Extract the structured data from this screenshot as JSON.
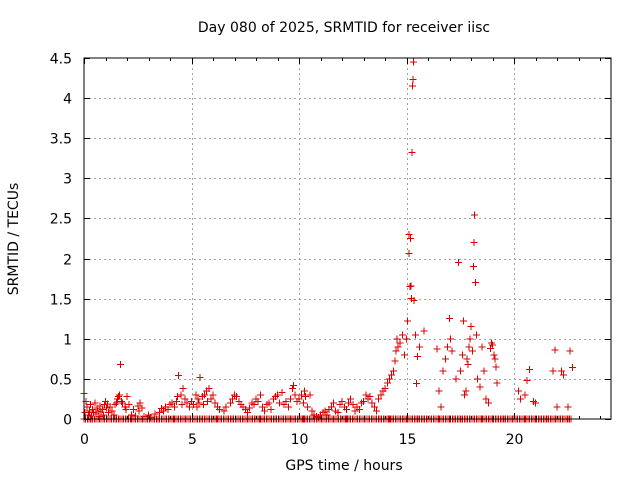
{
  "chart_data": {
    "type": "scatter",
    "title": "Day 080 of 2025, SRMTID for receiver iisc",
    "xlabel": "GPS time / hours",
    "ylabel": "SRMTID / TECUs",
    "xlim": [
      0,
      24.5
    ],
    "ylim": [
      0,
      4.5
    ],
    "xticks": [
      0,
      5,
      10,
      15,
      20
    ],
    "xtick_labels": [
      "0",
      "5",
      "10",
      "15",
      "20"
    ],
    "yticks": [
      0,
      0.5,
      1,
      1.5,
      2,
      2.5,
      3,
      3.5,
      4,
      4.5
    ],
    "ytick_labels": [
      "0",
      "0.5",
      "1",
      "1.5",
      "2",
      "2.5",
      "3",
      "3.5",
      "4",
      "4.5"
    ],
    "grid": true,
    "marker": "+",
    "marker_color": "#dd0000",
    "series": [
      {
        "name": "SRMTID",
        "points": [
          [
            0.0,
            0.32
          ],
          [
            0.05,
            0.08
          ],
          [
            0.1,
            0.22
          ],
          [
            0.15,
            0.15
          ],
          [
            0.2,
            0.05
          ],
          [
            0.25,
            0.1
          ],
          [
            0.3,
            0.18
          ],
          [
            0.35,
            0.04
          ],
          [
            0.4,
            0.12
          ],
          [
            0.45,
            0.08
          ],
          [
            0.5,
            0.2
          ],
          [
            0.55,
            0.06
          ],
          [
            0.6,
            0.14
          ],
          [
            0.65,
            0.1
          ],
          [
            0.7,
            0.03
          ],
          [
            0.75,
            0.16
          ],
          [
            0.8,
            0.09
          ],
          [
            0.85,
            0.12
          ],
          [
            0.9,
            0.05
          ],
          [
            0.95,
            0.18
          ],
          [
            1.0,
            0.22
          ],
          [
            1.05,
            0.14
          ],
          [
            1.1,
            0.19
          ],
          [
            1.15,
            0.08
          ],
          [
            1.2,
            0.15
          ],
          [
            1.3,
            0.1
          ],
          [
            1.4,
            0.05
          ],
          [
            1.45,
            0.18
          ],
          [
            1.5,
            0.2
          ],
          [
            1.55,
            0.25
          ],
          [
            1.6,
            0.28
          ],
          [
            1.65,
            0.3
          ],
          [
            1.7,
            0.68
          ],
          [
            1.75,
            0.22
          ],
          [
            1.8,
            0.2
          ],
          [
            1.9,
            0.15
          ],
          [
            1.95,
            0.12
          ],
          [
            2.0,
            0.28
          ],
          [
            2.1,
            0.18
          ],
          [
            2.2,
            0.05
          ],
          [
            2.3,
            0.12
          ],
          [
            2.4,
            0.04
          ],
          [
            2.5,
            0.16
          ],
          [
            2.55,
            0.1
          ],
          [
            2.6,
            0.2
          ],
          [
            2.7,
            0.14
          ],
          [
            2.8,
            0.03
          ],
          [
            3.0,
            0.05
          ],
          [
            3.1,
            0.02
          ],
          [
            3.3,
            0.06
          ],
          [
            3.5,
            0.08
          ],
          [
            3.6,
            0.13
          ],
          [
            3.7,
            0.1
          ],
          [
            3.8,
            0.15
          ],
          [
            3.9,
            0.12
          ],
          [
            4.0,
            0.18
          ],
          [
            4.1,
            0.2
          ],
          [
            4.2,
            0.15
          ],
          [
            4.3,
            0.22
          ],
          [
            4.35,
            0.28
          ],
          [
            4.4,
            0.54
          ],
          [
            4.5,
            0.3
          ],
          [
            4.55,
            0.18
          ],
          [
            4.6,
            0.38
          ],
          [
            4.7,
            0.25
          ],
          [
            4.8,
            0.2
          ],
          [
            4.9,
            0.15
          ],
          [
            5.0,
            0.22
          ],
          [
            5.1,
            0.18
          ],
          [
            5.2,
            0.3
          ],
          [
            5.25,
            0.15
          ],
          [
            5.3,
            0.25
          ],
          [
            5.35,
            0.2
          ],
          [
            5.4,
            0.52
          ],
          [
            5.5,
            0.28
          ],
          [
            5.55,
            0.18
          ],
          [
            5.6,
            0.3
          ],
          [
            5.7,
            0.35
          ],
          [
            5.75,
            0.22
          ],
          [
            5.8,
            0.38
          ],
          [
            5.9,
            0.25
          ],
          [
            6.0,
            0.3
          ],
          [
            6.1,
            0.2
          ],
          [
            6.2,
            0.15
          ],
          [
            6.3,
            0.12
          ],
          [
            6.5,
            0.1
          ],
          [
            6.6,
            0.15
          ],
          [
            6.8,
            0.2
          ],
          [
            6.9,
            0.25
          ],
          [
            7.0,
            0.3
          ],
          [
            7.1,
            0.28
          ],
          [
            7.2,
            0.22
          ],
          [
            7.3,
            0.18
          ],
          [
            7.4,
            0.15
          ],
          [
            7.5,
            0.12
          ],
          [
            7.6,
            0.08
          ],
          [
            7.7,
            0.14
          ],
          [
            7.8,
            0.2
          ],
          [
            7.9,
            0.18
          ],
          [
            8.0,
            0.25
          ],
          [
            8.1,
            0.22
          ],
          [
            8.2,
            0.3
          ],
          [
            8.3,
            0.15
          ],
          [
            8.4,
            0.1
          ],
          [
            8.5,
            0.18
          ],
          [
            8.6,
            0.2
          ],
          [
            8.7,
            0.12
          ],
          [
            8.8,
            0.25
          ],
          [
            8.9,
            0.28
          ],
          [
            9.0,
            0.3
          ],
          [
            9.1,
            0.2
          ],
          [
            9.2,
            0.33
          ],
          [
            9.3,
            0.18
          ],
          [
            9.4,
            0.22
          ],
          [
            9.5,
            0.15
          ],
          [
            9.6,
            0.25
          ],
          [
            9.7,
            0.38
          ],
          [
            9.75,
            0.42
          ],
          [
            9.8,
            0.3
          ],
          [
            9.9,
            0.22
          ],
          [
            10.0,
            0.25
          ],
          [
            10.1,
            0.3
          ],
          [
            10.2,
            0.2
          ],
          [
            10.25,
            0.35
          ],
          [
            10.3,
            0.28
          ],
          [
            10.4,
            0.15
          ],
          [
            10.5,
            0.3
          ],
          [
            10.6,
            0.1
          ],
          [
            10.7,
            0.05
          ],
          [
            10.8,
            0.03
          ],
          [
            10.9,
            0.02
          ],
          [
            11.0,
            0.05
          ],
          [
            11.1,
            0.08
          ],
          [
            11.2,
            0.1
          ],
          [
            11.3,
            0.05
          ],
          [
            11.4,
            0.12
          ],
          [
            11.5,
            0.15
          ],
          [
            11.6,
            0.2
          ],
          [
            11.7,
            0.1
          ],
          [
            11.8,
            0.08
          ],
          [
            11.9,
            0.18
          ],
          [
            12.0,
            0.22
          ],
          [
            12.1,
            0.15
          ],
          [
            12.2,
            0.12
          ],
          [
            12.3,
            0.2
          ],
          [
            12.4,
            0.25
          ],
          [
            12.5,
            0.18
          ],
          [
            12.6,
            0.1
          ],
          [
            12.7,
            0.15
          ],
          [
            12.8,
            0.12
          ],
          [
            12.9,
            0.2
          ],
          [
            13.0,
            0.22
          ],
          [
            13.1,
            0.3
          ],
          [
            13.2,
            0.25
          ],
          [
            13.3,
            0.28
          ],
          [
            13.4,
            0.2
          ],
          [
            13.5,
            0.15
          ],
          [
            13.6,
            0.1
          ],
          [
            13.7,
            0.25
          ],
          [
            13.8,
            0.3
          ],
          [
            13.9,
            0.35
          ],
          [
            14.0,
            0.38
          ],
          [
            14.1,
            0.45
          ],
          [
            14.2,
            0.5
          ],
          [
            14.3,
            0.55
          ],
          [
            14.4,
            0.6
          ],
          [
            14.45,
            0.72
          ],
          [
            14.5,
            0.85
          ],
          [
            14.55,
            1.0
          ],
          [
            14.6,
            0.9
          ],
          [
            14.7,
            0.95
          ],
          [
            14.8,
            1.05
          ],
          [
            14.9,
            0.8
          ],
          [
            15.0,
            1.0
          ],
          [
            15.05,
            1.22
          ],
          [
            15.1,
            2.3
          ],
          [
            15.12,
            2.06
          ],
          [
            15.15,
            1.65
          ],
          [
            15.18,
            2.25
          ],
          [
            15.2,
            1.66
          ],
          [
            15.22,
            1.5
          ],
          [
            15.25,
            3.32
          ],
          [
            15.28,
            4.15
          ],
          [
            15.3,
            4.23
          ],
          [
            15.32,
            4.45
          ],
          [
            15.35,
            1.48
          ],
          [
            15.4,
            1.05
          ],
          [
            15.45,
            0.44
          ],
          [
            15.5,
            0.78
          ],
          [
            15.6,
            0.9
          ],
          [
            15.8,
            1.1
          ],
          [
            16.0,
            0.0
          ],
          [
            16.4,
            0.87
          ],
          [
            16.5,
            0.35
          ],
          [
            16.6,
            0.15
          ],
          [
            16.7,
            0.6
          ],
          [
            16.8,
            0.75
          ],
          [
            16.9,
            0.9
          ],
          [
            17.0,
            1.25
          ],
          [
            17.05,
            1.0
          ],
          [
            17.1,
            0.85
          ],
          [
            17.3,
            0.5
          ],
          [
            17.4,
            1.95
          ],
          [
            17.5,
            0.6
          ],
          [
            17.6,
            0.8
          ],
          [
            17.65,
            1.22
          ],
          [
            17.7,
            0.3
          ],
          [
            17.75,
            0.35
          ],
          [
            17.8,
            0.75
          ],
          [
            17.85,
            0.68
          ],
          [
            17.9,
            0.9
          ],
          [
            17.95,
            1.0
          ],
          [
            18.0,
            1.15
          ],
          [
            18.05,
            0.85
          ],
          [
            18.1,
            1.9
          ],
          [
            18.12,
            2.2
          ],
          [
            18.15,
            2.54
          ],
          [
            18.2,
            1.7
          ],
          [
            18.25,
            1.05
          ],
          [
            18.3,
            0.5
          ],
          [
            18.4,
            0.4
          ],
          [
            18.5,
            0.9
          ],
          [
            18.6,
            0.6
          ],
          [
            18.7,
            0.25
          ],
          [
            18.8,
            0.2
          ],
          [
            18.9,
            0.88
          ],
          [
            18.95,
            0.95
          ],
          [
            19.0,
            0.92
          ],
          [
            19.05,
            0.8
          ],
          [
            19.1,
            0.75
          ],
          [
            19.15,
            0.65
          ],
          [
            19.2,
            0.45
          ],
          [
            20.2,
            0.35
          ],
          [
            20.3,
            0.25
          ],
          [
            20.5,
            0.3
          ],
          [
            20.6,
            0.48
          ],
          [
            20.7,
            0.62
          ],
          [
            20.9,
            0.22
          ],
          [
            21.0,
            0.2
          ],
          [
            21.8,
            0.6
          ],
          [
            21.9,
            0.86
          ],
          [
            22.0,
            0.15
          ],
          [
            22.2,
            0.6
          ],
          [
            22.3,
            0.55
          ],
          [
            22.5,
            0.15
          ],
          [
            22.6,
            0.85
          ],
          [
            22.7,
            0.64
          ],
          [
            0.3,
            0.0
          ],
          [
            1.2,
            0.0
          ],
          [
            2.2,
            0.0
          ],
          [
            3.2,
            0.0
          ],
          [
            4.2,
            0.0
          ],
          [
            5.2,
            0.0
          ],
          [
            6.2,
            0.0
          ],
          [
            7.2,
            0.0
          ],
          [
            8.2,
            0.0
          ],
          [
            9.2,
            0.0
          ],
          [
            10.2,
            0.0
          ],
          [
            11.2,
            0.0
          ],
          [
            12.2,
            0.0
          ],
          [
            13.2,
            0.0
          ],
          [
            14.2,
            0.0
          ],
          [
            15.0,
            0.0
          ],
          [
            15.5,
            0.0
          ],
          [
            16.5,
            0.0
          ],
          [
            17.0,
            0.0
          ],
          [
            17.5,
            0.0
          ],
          [
            18.0,
            0.0
          ],
          [
            18.5,
            0.0
          ],
          [
            19.0,
            0.0
          ],
          [
            19.5,
            0.0
          ],
          [
            20.0,
            0.0
          ],
          [
            20.5,
            0.0
          ],
          [
            21.0,
            0.0
          ],
          [
            21.5,
            0.0
          ],
          [
            22.0,
            0.0
          ],
          [
            22.5,
            0.0
          ]
        ]
      }
    ]
  }
}
